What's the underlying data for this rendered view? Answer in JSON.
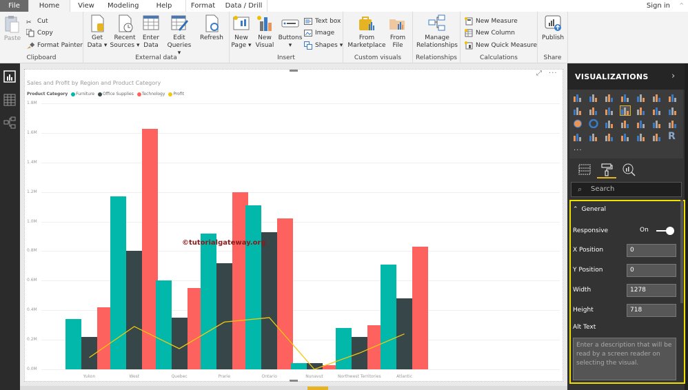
{
  "tabs": [
    {
      "label": "File"
    },
    {
      "label": "Home"
    },
    {
      "label": "View"
    },
    {
      "label": "Modeling"
    },
    {
      "label": "Help"
    },
    {
      "label": "Format"
    },
    {
      "label": "Data / Drill"
    }
  ],
  "signin": "Sign in",
  "ribbon": {
    "clipboard": {
      "label": "Clipboard",
      "paste": "Paste",
      "cut": "Cut",
      "copy": "Copy",
      "format_painter": "Format Painter"
    },
    "external": {
      "label": "External data",
      "get_data": [
        "Get",
        "Data ▾"
      ],
      "recent": [
        "Recent",
        "Sources ▾"
      ],
      "enter": [
        "Enter",
        "Data"
      ],
      "edit": [
        "Edit",
        "Queries ▾"
      ],
      "refresh": "Refresh"
    },
    "insert": {
      "label": "Insert",
      "new_page": [
        "New",
        "Page ▾"
      ],
      "new_visual": [
        "New",
        "Visual"
      ],
      "buttons": [
        "Buttons",
        "▾"
      ],
      "text_box": "Text box",
      "image": "Image",
      "shapes": "Shapes ▾"
    },
    "custom": {
      "label": "Custom visuals",
      "marketplace": [
        "From",
        "Marketplace"
      ],
      "file": [
        "From",
        "File"
      ]
    },
    "relationships": {
      "label": "Relationships",
      "manage": [
        "Manage",
        "Relationships"
      ]
    },
    "calculations": {
      "label": "Calculations",
      "new_measure": "New Measure",
      "new_column": "New Column",
      "new_quick": "New Quick Measure"
    },
    "share": {
      "label": "Share",
      "publish": "Publish"
    }
  },
  "visual": {
    "title": "Sales and Profit by Region and Product Category",
    "legend_title": "Product Category",
    "watermark": "©tutorialgateway.org",
    "more": "···"
  },
  "chart_data": {
    "type": "bar",
    "subtype": "line and clustered column",
    "title": "Sales and Profit by Region and Product Category",
    "xlabel": "",
    "ylabel": "",
    "ylim": [
      0,
      1.8
    ],
    "yticks": [
      "0.0M",
      "0.2M",
      "0.4M",
      "0.6M",
      "0.8M",
      "1.0M",
      "1.2M",
      "1.4M",
      "1.6M",
      "1.8M"
    ],
    "grid": true,
    "legend_position": "top-left",
    "categories": [
      "Yukon",
      "West",
      "Quebec",
      "Prarie",
      "Ontario",
      "Nunavut",
      "Northwest Territories",
      "Atlantic"
    ],
    "series": [
      {
        "name": "Furniture",
        "type": "column",
        "color": "#01b8aa",
        "values": [
          0.34,
          1.17,
          0.6,
          0.92,
          1.11,
          0.04,
          0.28,
          0.71
        ]
      },
      {
        "name": "Office Supplies",
        "type": "column",
        "color": "#374649",
        "values": [
          0.22,
          0.8,
          0.35,
          0.72,
          0.93,
          0.04,
          0.22,
          0.48
        ]
      },
      {
        "name": "Technology",
        "type": "column",
        "color": "#fd625e",
        "values": [
          0.42,
          1.63,
          0.55,
          1.2,
          1.02,
          0.03,
          0.3,
          0.83
        ]
      },
      {
        "name": "Profit",
        "type": "line",
        "color": "#f2c80f",
        "values": [
          0.08,
          0.29,
          0.14,
          0.32,
          0.35,
          0.0,
          0.11,
          0.24
        ]
      }
    ]
  },
  "pane": {
    "title": "VISUALIZATIONS",
    "search_placeholder": "Search",
    "general": "General",
    "responsive_label": "Responsive",
    "responsive_value": "On",
    "x_label": "X Position",
    "x_value": "0",
    "y_label": "Y Position",
    "y_value": "0",
    "width_label": "Width",
    "width_value": "1278",
    "height_label": "Height",
    "height_value": "718",
    "alt_label": "Alt Text",
    "alt_placeholder": "Enter a description that will be read by a screen reader on selecting the visual."
  }
}
